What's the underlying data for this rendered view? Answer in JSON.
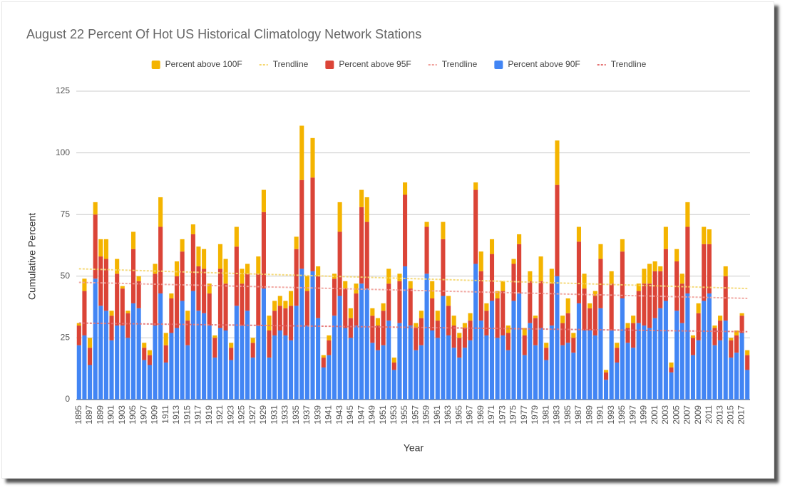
{
  "chart_data": {
    "type": "stacked-bar",
    "title": "August 22 Percent Of Hot US Historical Climatology Network Stations",
    "x_label": "Year",
    "y_label": "Cumulative Percent",
    "ylim": [
      0,
      125
    ],
    "yticks": [
      0,
      25,
      50,
      75,
      100,
      125
    ],
    "grid": true,
    "legend": "top",
    "categories": [
      "1895",
      null,
      "1897",
      null,
      "1899",
      null,
      "1901",
      null,
      "1903",
      null,
      "1905",
      null,
      "1907",
      null,
      "1909",
      null,
      "1911",
      null,
      "1913",
      null,
      "1915",
      null,
      "1917",
      null,
      "1919",
      null,
      "1921",
      null,
      "1923",
      null,
      "1925",
      null,
      "1927",
      null,
      "1929",
      null,
      "1931",
      null,
      "1933",
      null,
      "1935",
      null,
      "1937",
      null,
      "1939",
      null,
      "1941",
      null,
      "1943",
      null,
      "1945",
      null,
      "1947",
      null,
      "1949",
      null,
      "1951",
      null,
      "1953",
      null,
      "1955",
      null,
      "1957",
      null,
      "1959",
      null,
      "1961",
      null,
      "1963",
      null,
      "1965",
      null,
      "1967",
      null,
      "1969",
      null,
      "1971",
      null,
      "1973",
      null,
      "1975",
      null,
      "1977",
      null,
      "1979",
      null,
      "1981",
      null,
      "1983",
      null,
      "1985",
      null,
      "1987",
      null,
      "1989",
      null,
      "1991",
      null,
      "1993",
      null,
      "1995",
      null,
      "1997",
      null,
      "1999",
      null,
      "2001",
      null,
      "2003",
      null,
      "2005",
      null,
      "2007",
      null,
      "2009",
      null,
      "2011",
      null,
      "2013",
      null,
      "2015",
      null,
      "2017",
      null
    ],
    "series": [
      {
        "name": "Percent above 100F",
        "color": "#f4b400",
        "trendline": {
          "name": "Trendline",
          "color": "#f5d76e",
          "values": [
            53,
            45
          ]
        },
        "values": [
          1,
          5,
          4,
          5,
          7,
          8,
          2,
          6,
          1,
          1,
          7,
          2,
          2,
          2,
          4,
          12,
          5,
          2,
          6,
          5,
          4,
          4,
          8,
          8,
          4,
          1,
          10,
          10,
          2,
          8,
          6,
          4,
          2,
          7,
          9,
          6,
          4,
          4,
          3,
          6,
          5,
          22,
          6,
          16,
          4,
          1,
          2,
          2,
          12,
          3,
          4,
          4,
          7,
          10,
          3,
          3,
          3,
          6,
          2,
          3,
          5,
          3,
          2,
          3,
          2,
          7,
          4,
          7,
          4,
          4,
          2,
          2,
          3,
          3,
          8,
          3,
          6,
          3,
          4,
          3,
          2,
          4,
          3,
          4,
          1,
          10,
          2,
          6,
          18,
          3,
          6,
          2,
          6,
          6,
          2,
          2,
          6,
          1,
          5,
          2,
          5,
          2,
          3,
          3,
          6,
          8,
          4,
          2,
          9,
          2,
          5,
          4,
          10,
          1,
          4,
          7,
          6,
          1,
          2,
          4,
          1,
          2,
          1,
          2
        ]
      },
      {
        "name": "Percent above 95F",
        "color": "#db4437",
        "trendline": {
          "name": "Trendline",
          "color": "#f0a09a",
          "values": [
            47.5,
            41
          ]
        },
        "values": [
          8,
          18,
          7,
          26,
          20,
          21,
          10,
          21,
          15,
          10,
          22,
          11,
          5,
          4,
          21,
          27,
          7,
          14,
          21,
          20,
          10,
          23,
          18,
          18,
          13,
          8,
          24,
          19,
          5,
          24,
          17,
          15,
          6,
          21,
          31,
          11,
          10,
          10,
          11,
          14,
          23,
          36,
          14,
          38,
          17,
          4,
          6,
          15,
          26,
          16,
          8,
          13,
          31,
          27,
          11,
          10,
          14,
          15,
          3,
          17,
          29,
          15,
          9,
          11,
          19,
          13,
          7,
          23,
          12,
          9,
          8,
          8,
          8,
          30,
          20,
          10,
          19,
          16,
          18,
          7,
          15,
          20,
          8,
          17,
          11,
          19,
          5,
          17,
          37,
          9,
          12,
          6,
          25,
          17,
          9,
          16,
          20,
          3,
          19,
          6,
          19,
          6,
          10,
          13,
          17,
          18,
          19,
          15,
          21,
          2,
          20,
          16,
          27,
          7,
          11,
          23,
          20,
          7,
          8,
          18,
          7,
          7,
          7,
          6
        ]
      },
      {
        "name": "Percent above 90F",
        "color": "#4285f4",
        "trendline": {
          "name": "Trendline",
          "color": "#e57373",
          "values": [
            31,
            27.5
          ]
        },
        "values": [
          22,
          26,
          14,
          49,
          38,
          36,
          24,
          30,
          30,
          25,
          39,
          37,
          16,
          14,
          30,
          43,
          15,
          27,
          29,
          40,
          22,
          44,
          36,
          35,
          30,
          17,
          29,
          28,
          16,
          38,
          30,
          36,
          17,
          30,
          45,
          17,
          26,
          28,
          26,
          24,
          38,
          53,
          30,
          52,
          33,
          13,
          18,
          34,
          42,
          29,
          25,
          30,
          47,
          45,
          23,
          20,
          22,
          32,
          12,
          31,
          54,
          30,
          20,
          22,
          51,
          28,
          25,
          42,
          26,
          21,
          17,
          21,
          24,
          55,
          32,
          26,
          40,
          25,
          26,
          20,
          40,
          43,
          18,
          31,
          22,
          29,
          16,
          30,
          50,
          22,
          23,
          19,
          39,
          28,
          28,
          26,
          37,
          8,
          28,
          15,
          41,
          23,
          21,
          31,
          30,
          29,
          33,
          37,
          40,
          11,
          36,
          31,
          43,
          18,
          24,
          40,
          43,
          22,
          24,
          32,
          17,
          19,
          27,
          12
        ]
      }
    ]
  }
}
